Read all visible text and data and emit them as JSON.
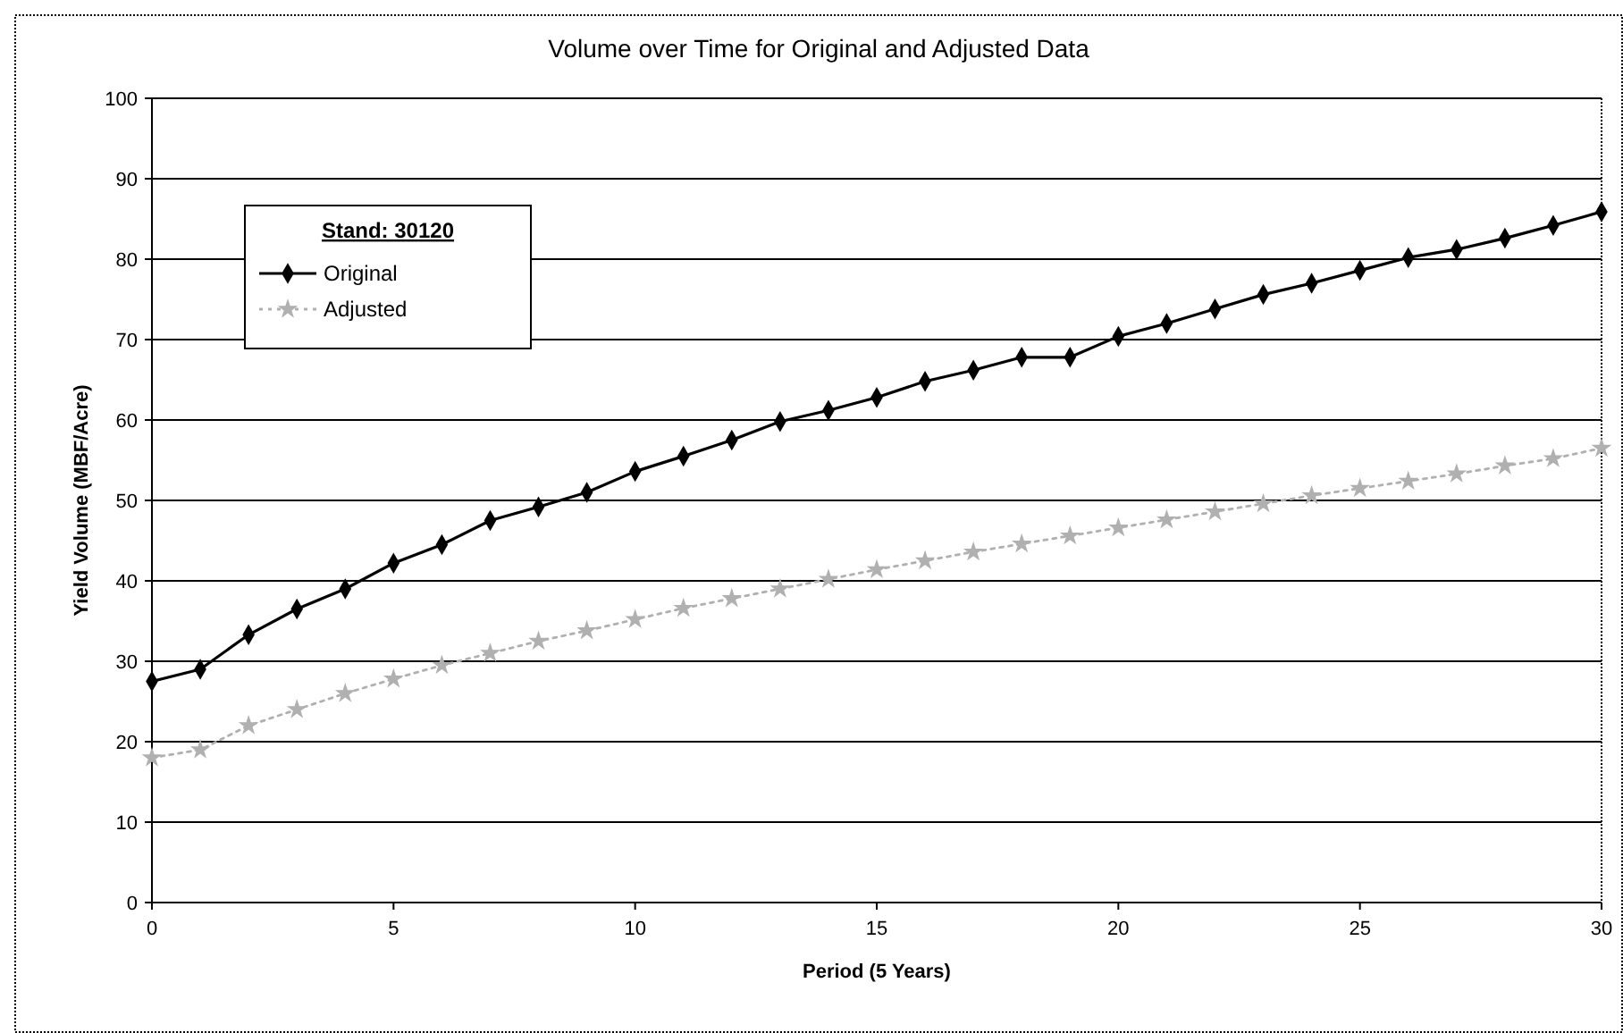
{
  "chart_data": {
    "type": "line",
    "title": "Volume over Time for Original and Adjusted Data",
    "xlabel": "Period (5 Years)",
    "ylabel": "Yield Volume (MBF/Acre)",
    "legend_title": "Stand:  30120",
    "legend": "top left",
    "grid": "y",
    "x": [
      0,
      1,
      2,
      3,
      4,
      5,
      6,
      7,
      8,
      9,
      10,
      11,
      12,
      13,
      14,
      15,
      16,
      17,
      18,
      19,
      20,
      21,
      22,
      23,
      24,
      25,
      26,
      27,
      28,
      29,
      30
    ],
    "xlim": [
      0,
      30
    ],
    "xticks": [
      0,
      5,
      10,
      15,
      20,
      25,
      30
    ],
    "ylim": [
      0,
      100
    ],
    "yticks": [
      0,
      10,
      20,
      30,
      40,
      50,
      60,
      70,
      80,
      90,
      100
    ],
    "series": [
      {
        "name": "Original",
        "color": "#000000",
        "marker": "diamond",
        "line_style": "solid",
        "values": [
          27.5,
          29,
          33.3,
          36.5,
          39,
          42.2,
          44.5,
          47.5,
          49.2,
          51,
          53.6,
          55.5,
          57.5,
          59.8,
          61.2,
          62.8,
          64.8,
          66.2,
          67.8,
          67.8,
          70.4,
          72,
          73.8,
          75.6,
          77,
          78.6,
          80.2,
          81.2,
          82.6,
          84.2,
          85.9
        ]
      },
      {
        "name": "Adjusted",
        "color": "#b0b0b0",
        "marker": "star",
        "line_style": "dotted",
        "values": [
          18,
          19,
          22,
          24,
          26,
          27.8,
          29.5,
          31,
          32.5,
          33.8,
          35.2,
          36.6,
          37.8,
          39,
          40.2,
          41.4,
          42.5,
          43.6,
          44.6,
          45.6,
          46.6,
          47.6,
          48.6,
          49.6,
          50.6,
          51.5,
          52.4,
          53.3,
          54.3,
          55.2,
          56.5
        ]
      }
    ]
  }
}
